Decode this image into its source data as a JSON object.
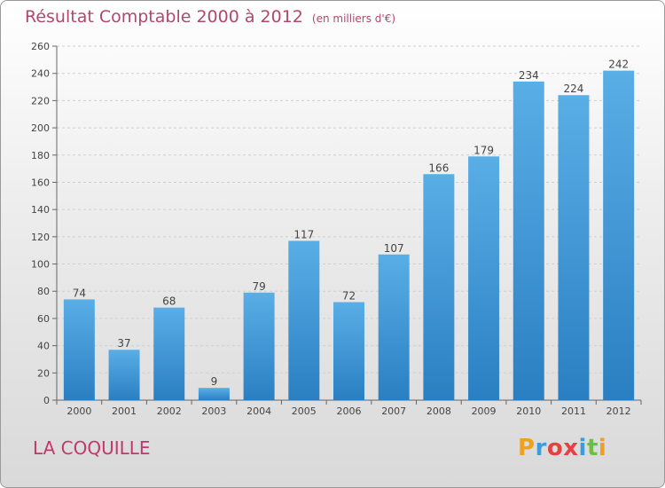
{
  "chart_data": {
    "type": "bar",
    "title": "Résultat Comptable 2000 à 2012",
    "unit": "(en milliers d'€)",
    "categories": [
      "2000",
      "2001",
      "2002",
      "2003",
      "2004",
      "2005",
      "2006",
      "2007",
      "2008",
      "2009",
      "2010",
      "2011",
      "2012"
    ],
    "values": [
      74,
      37,
      68,
      9,
      79,
      117,
      72,
      107,
      166,
      179,
      234,
      224,
      242
    ],
    "ylim": [
      0,
      260
    ],
    "yticks": [
      0,
      20,
      40,
      60,
      80,
      100,
      120,
      140,
      160,
      180,
      200,
      220,
      240,
      260
    ],
    "xlabel": "",
    "ylabel": "",
    "grid": true,
    "bar_color_top": "#5aaee6",
    "bar_color_bottom": "#2a7fc2"
  },
  "footer": {
    "town": "LA COQUILLE",
    "logo_letters": [
      "P",
      "r",
      "o",
      "x",
      "i",
      "t",
      "i"
    ],
    "logo_colors": [
      "#f0a020",
      "#3a9de0",
      "#e84040",
      "#e84040",
      "#3a9de0",
      "#6cc040",
      "#f0a020"
    ]
  }
}
